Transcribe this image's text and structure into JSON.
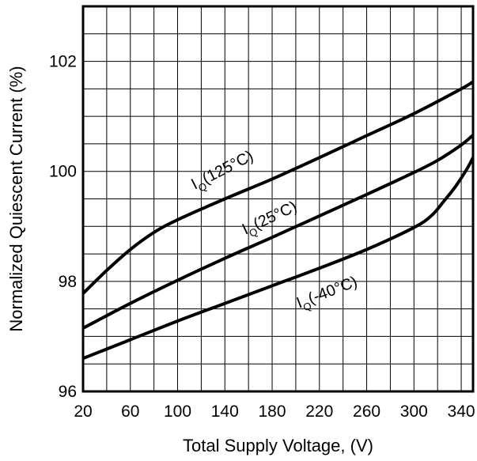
{
  "chart_data": {
    "type": "line",
    "xlabel": "Total Supply Voltage, (V)",
    "ylabel": "Normalized Quiescent Current (%)",
    "xlim": [
      20,
      350
    ],
    "ylim": [
      96,
      103
    ],
    "x_ticks": [
      "20",
      "60",
      "100",
      "140",
      "180",
      "220",
      "260",
      "300",
      "340"
    ],
    "y_ticks": [
      "96",
      "98",
      "100",
      "102"
    ],
    "grid": true,
    "series": [
      {
        "name": "IQ(125°C)",
        "label_main": "I",
        "label_sub": "Q",
        "label_rest": "(125°C)",
        "x": [
          20,
          40,
          60,
          80,
          100,
          140,
          180,
          220,
          260,
          300,
          340,
          350
        ],
        "y": [
          97.78,
          98.2,
          98.58,
          98.89,
          99.12,
          99.5,
          99.86,
          100.25,
          100.65,
          101.05,
          101.5,
          101.63
        ]
      },
      {
        "name": "IQ(25°C)",
        "label_main": "I",
        "label_sub": "Q",
        "label_rest": "(25°C)",
        "x": [
          20,
          60,
          100,
          140,
          180,
          220,
          260,
          300,
          320,
          340,
          350
        ],
        "y": [
          97.15,
          97.6,
          98.02,
          98.42,
          98.8,
          99.19,
          99.58,
          99.98,
          100.2,
          100.48,
          100.66
        ]
      },
      {
        "name": "IQ(-40°C)",
        "label_main": "I",
        "label_sub": "Q",
        "label_rest": "(-40°C)",
        "x": [
          20,
          60,
          100,
          140,
          180,
          220,
          260,
          300,
          315,
          325,
          335,
          345,
          350
        ],
        "y": [
          96.6,
          96.94,
          97.28,
          97.6,
          97.92,
          98.24,
          98.58,
          98.98,
          99.2,
          99.45,
          99.72,
          100.05,
          100.25
        ]
      }
    ]
  }
}
